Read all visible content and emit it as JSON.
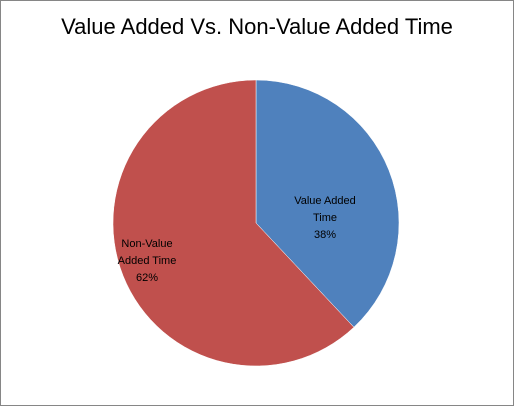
{
  "chart_data": {
    "type": "pie",
    "title": "Value Added Vs. Non-Value Added Time",
    "slices": [
      {
        "label_lines": [
          "Value Added",
          "Time"
        ],
        "percent_label": "38%",
        "value": 38,
        "color": "#4F81BD"
      },
      {
        "label_lines": [
          "Non-Value",
          "Added Time"
        ],
        "percent_label": "62%",
        "value": 62,
        "color": "#C0504D"
      }
    ],
    "legend": "none"
  }
}
